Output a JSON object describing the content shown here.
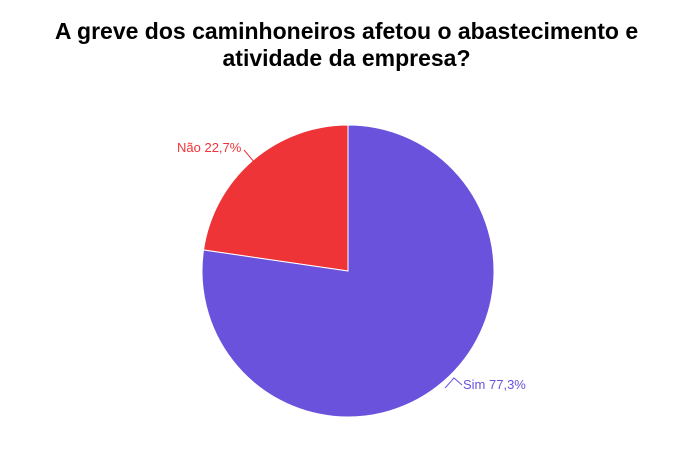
{
  "chart_data": {
    "type": "pie",
    "title_lines": [
      "A greve dos caminhoneiros afetou o abastecimento e",
      "atividade da empresa?"
    ],
    "slices": [
      {
        "label": "Não",
        "value": 22.7,
        "display": "Não 22,7%",
        "color": "#ef3438"
      },
      {
        "label": "Sim",
        "value": 77.3,
        "display": "Sim 77,3%",
        "color": "#6a52dc"
      }
    ],
    "legend": "none",
    "start_angle": "12 o'clock",
    "direction": "counter-clockwise"
  }
}
